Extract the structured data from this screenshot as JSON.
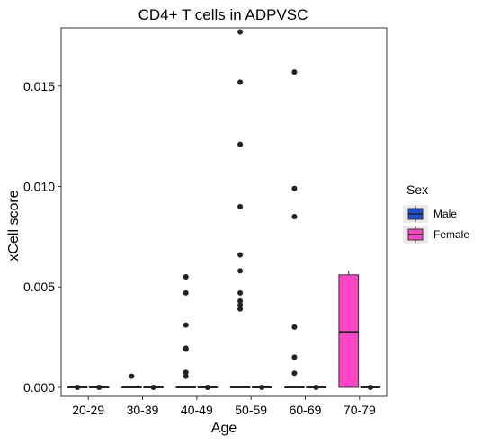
{
  "chart_data": {
    "type": "boxplot",
    "title": "CD4+ T cells in ADPVSC",
    "xlabel": "Age",
    "ylabel": "xCell score",
    "categories": [
      "20-29",
      "30-39",
      "40-49",
      "50-59",
      "60-69",
      "70-79"
    ],
    "ylim": [
      -0.00045,
      0.0179
    ],
    "yticks": [
      0.0,
      0.005,
      0.01,
      0.015
    ],
    "ytick_labels": [
      "0.000",
      "0.005",
      "0.010",
      "0.015"
    ],
    "grid": false,
    "legend": {
      "title": "Sex",
      "position": "right",
      "entries": [
        {
          "name": "Male",
          "color": "#1f4fd1"
        },
        {
          "name": "Female",
          "color": "#ff44c8"
        }
      ]
    },
    "series": [
      {
        "name": "Male",
        "color": "#1f4fd1",
        "boxes": [
          {
            "category": "20-29",
            "q1": 0,
            "median": 0,
            "q3": 0,
            "whisker_low": 0,
            "whisker_high": 0,
            "outliers": [
              0
            ]
          },
          {
            "category": "30-39",
            "q1": 0,
            "median": 0,
            "q3": 0,
            "whisker_low": 0,
            "whisker_high": 0,
            "outliers": [
              0.00055
            ]
          },
          {
            "category": "40-49",
            "q1": 0,
            "median": 0,
            "q3": 0,
            "whisker_low": 0,
            "whisker_high": 0,
            "outliers": [
              0.00055,
              0.00075,
              0.0019,
              0.00195,
              0.0031,
              0.0047,
              0.0055
            ]
          },
          {
            "category": "50-59",
            "q1": 0,
            "median": 0,
            "q3": 0,
            "whisker_low": 0,
            "whisker_high": 0,
            "outliers": [
              0.0039,
              0.0041,
              0.0043,
              0.0047,
              0.0058,
              0.0066,
              0.009,
              0.0121,
              0.0152,
              0.0177
            ]
          },
          {
            "category": "60-69",
            "q1": 0,
            "median": 0,
            "q3": 0,
            "whisker_low": 0,
            "whisker_high": 0,
            "outliers": [
              0.0007,
              0.0015,
              0.003,
              0.0085,
              0.0099,
              0.0157
            ]
          },
          {
            "category": "70-79",
            "q1": null,
            "median": null,
            "q3": null,
            "whisker_low": null,
            "whisker_high": null,
            "outliers": []
          }
        ]
      },
      {
        "name": "Female",
        "color": "#ff44c8",
        "boxes": [
          {
            "category": "20-29",
            "q1": 0,
            "median": 0,
            "q3": 0,
            "whisker_low": 0,
            "whisker_high": 0,
            "outliers": [
              0
            ]
          },
          {
            "category": "30-39",
            "q1": 0,
            "median": 0,
            "q3": 0,
            "whisker_low": 0,
            "whisker_high": 0,
            "outliers": [
              0
            ]
          },
          {
            "category": "40-49",
            "q1": 0,
            "median": 0,
            "q3": 0,
            "whisker_low": 0,
            "whisker_high": 0,
            "outliers": [
              0
            ]
          },
          {
            "category": "50-59",
            "q1": 0,
            "median": 0,
            "q3": 0,
            "whisker_low": 0,
            "whisker_high": 0,
            "outliers": [
              0
            ]
          },
          {
            "category": "60-69",
            "q1": 0,
            "median": 0,
            "q3": 0,
            "whisker_low": 0,
            "whisker_high": 0,
            "outliers": [
              0
            ]
          },
          {
            "category": "70-79",
            "q1": 0,
            "median": 0.00275,
            "q3": 0.0056,
            "whisker_low": 0,
            "whisker_high": 0.0058,
            "outliers": [],
            "single_box": true
          },
          {
            "category": "70-79",
            "q1": 0,
            "median": 0,
            "q3": 0,
            "whisker_low": 0,
            "whisker_high": 0,
            "outliers": [
              0
            ],
            "second_slot": true
          }
        ]
      }
    ]
  }
}
